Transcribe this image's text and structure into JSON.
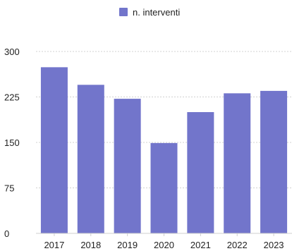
{
  "chart_data": {
    "type": "bar",
    "categories": [
      "2017",
      "2018",
      "2019",
      "2020",
      "2021",
      "2022",
      "2023"
    ],
    "series": [
      {
        "name": "n. interventi",
        "values": [
          274,
          245,
          222,
          149,
          200,
          231,
          235
        ]
      }
    ],
    "ylim": [
      0,
      300
    ],
    "yticks": [
      0,
      75,
      150,
      225,
      300
    ],
    "grid": true,
    "legend_position": "top-center",
    "colors": {
      "bar": "#7275cb",
      "grid": "#d0d0d0",
      "axis": "#cfcfcf"
    }
  }
}
